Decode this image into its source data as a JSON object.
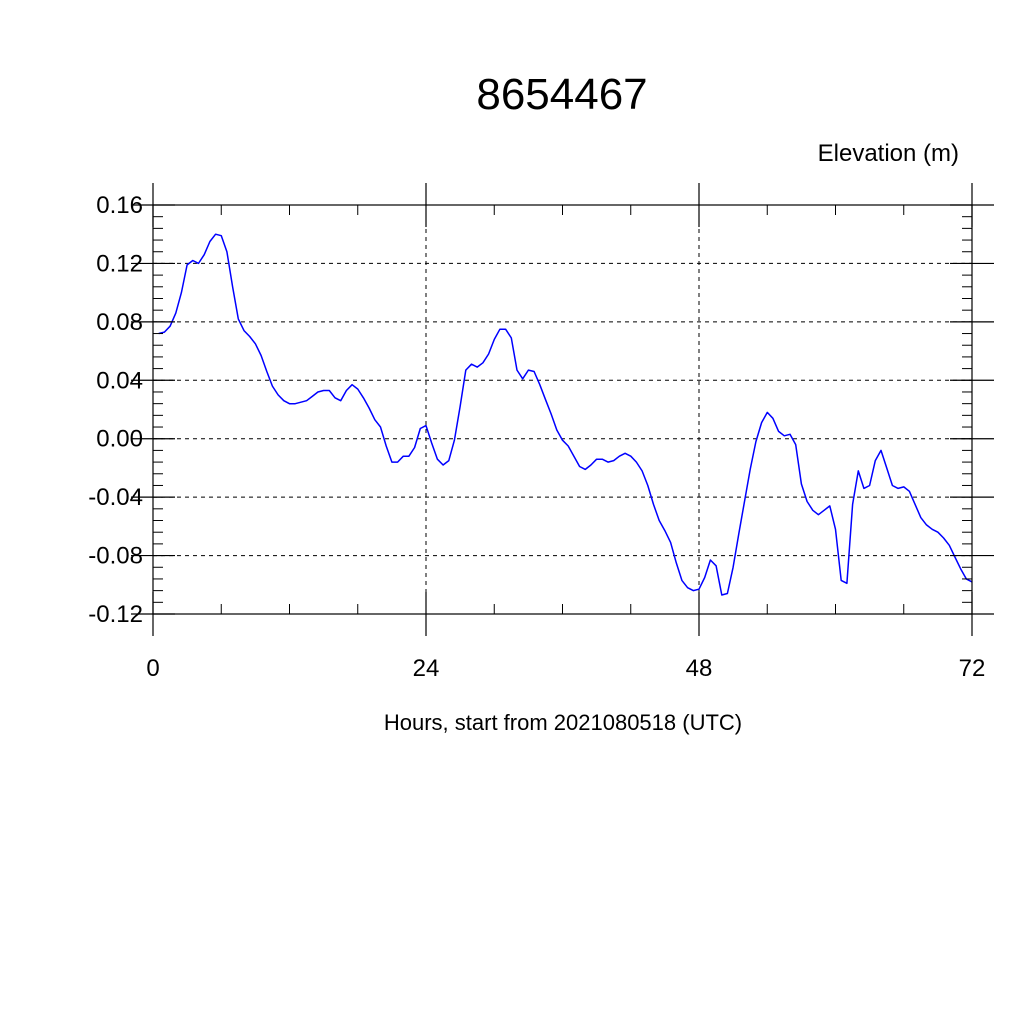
{
  "chart_data": {
    "type": "line",
    "title": "8654467",
    "ylabel": "Elevation (m)",
    "xlabel": "Hours, start from 2021080518 (UTC)",
    "xlim": [
      0,
      72
    ],
    "ylim": [
      -0.12,
      0.16
    ],
    "x_ticks": [
      0,
      24,
      48,
      72
    ],
    "x_tick_labels": [
      "0",
      "24",
      "48",
      "72"
    ],
    "y_ticks": [
      -0.12,
      -0.08,
      -0.04,
      0.0,
      0.04,
      0.08,
      0.12,
      0.16
    ],
    "y_tick_labels": [
      "-0.12",
      "-0.08",
      "-0.04",
      "0.00",
      "0.04",
      "0.08",
      "0.12",
      "0.16"
    ],
    "grid": true,
    "line_color": "#0000ff",
    "series": [
      {
        "x": [
          0.5,
          1.0,
          1.5,
          2.0,
          2.5,
          3.0,
          3.5,
          4.0,
          4.5,
          5.0,
          5.5,
          6.0,
          6.5,
          7.0,
          7.5,
          8.0,
          8.5,
          9.0,
          9.5,
          10.0,
          10.5,
          11.0,
          11.5,
          12.0,
          12.5,
          13.0,
          13.5,
          14.0,
          14.5,
          15.0,
          15.5,
          16.0,
          16.5,
          17.0,
          17.5,
          18.0,
          18.5,
          19.0,
          19.5,
          20.0,
          20.5,
          21.0,
          21.5,
          22.0,
          22.5,
          23.0,
          23.5,
          24.0,
          24.5,
          25.0,
          25.5,
          26.0,
          26.5,
          27.0,
          27.5,
          28.0,
          28.5,
          29.0,
          29.5,
          30.0,
          30.5,
          31.0,
          31.5,
          32.0,
          32.5,
          33.0,
          33.5,
          34.0,
          34.5,
          35.0,
          35.5,
          36.0,
          36.5,
          37.0,
          37.5,
          38.0,
          38.5,
          39.0,
          39.5,
          40.0,
          40.5,
          41.0,
          41.5,
          42.0,
          42.5,
          43.0,
          43.5,
          44.0,
          44.5,
          45.0,
          45.5,
          46.0,
          46.5,
          47.0,
          47.5,
          48.0,
          48.5,
          49.0,
          49.5,
          50.0,
          50.5,
          51.0,
          51.5,
          52.0,
          52.5,
          53.0,
          53.5,
          54.0,
          54.5,
          55.0,
          55.5,
          56.0,
          56.5,
          57.0,
          57.5,
          58.0,
          58.5,
          59.0,
          59.5,
          60.0,
          60.5,
          61.0,
          61.5,
          62.0,
          62.5,
          63.0,
          63.5,
          64.0,
          64.5,
          65.0,
          65.5,
          66.0,
          66.5,
          67.0,
          67.5,
          68.0,
          68.5,
          69.0,
          69.5,
          70.0,
          70.5,
          71.0,
          71.5,
          72.0
        ],
        "y": [
          0.072,
          0.073,
          0.077,
          0.086,
          0.1,
          0.119,
          0.122,
          0.12,
          0.126,
          0.135,
          0.14,
          0.139,
          0.128,
          0.104,
          0.082,
          0.074,
          0.07,
          0.065,
          0.057,
          0.046,
          0.036,
          0.03,
          0.026,
          0.024,
          0.024,
          0.025,
          0.026,
          0.029,
          0.032,
          0.033,
          0.033,
          0.028,
          0.026,
          0.033,
          0.037,
          0.034,
          0.028,
          0.021,
          0.013,
          0.008,
          -0.005,
          -0.016,
          -0.016,
          -0.012,
          -0.012,
          -0.006,
          0.007,
          0.009,
          -0.003,
          -0.014,
          -0.018,
          -0.015,
          -0.001,
          0.022,
          0.047,
          0.051,
          0.049,
          0.052,
          0.058,
          0.068,
          0.075,
          0.075,
          0.069,
          0.047,
          0.041,
          0.047,
          0.046,
          0.037,
          0.027,
          0.017,
          0.006,
          -0.001,
          -0.005,
          -0.012,
          -0.019,
          -0.021,
          -0.018,
          -0.014,
          -0.014,
          -0.016,
          -0.015,
          -0.012,
          -0.01,
          -0.012,
          -0.016,
          -0.022,
          -0.032,
          -0.045,
          -0.056,
          -0.063,
          -0.071,
          -0.085,
          -0.097,
          -0.102,
          -0.104,
          -0.103,
          -0.095,
          -0.083,
          -0.087,
          -0.107,
          -0.106,
          -0.088,
          -0.065,
          -0.043,
          -0.021,
          -0.002,
          0.011,
          0.018,
          0.014,
          0.005,
          0.002,
          0.003,
          -0.004,
          -0.031,
          -0.043,
          -0.049,
          -0.052,
          -0.049,
          -0.046,
          -0.062,
          -0.097,
          -0.099,
          -0.045,
          -0.022,
          -0.034,
          -0.032,
          -0.015,
          -0.008,
          -0.02,
          -0.032,
          -0.034,
          -0.033,
          -0.036,
          -0.045,
          -0.054,
          -0.059,
          -0.062,
          -0.064,
          -0.068,
          -0.073,
          -0.081,
          -0.089,
          -0.096,
          -0.098
        ]
      }
    ]
  }
}
